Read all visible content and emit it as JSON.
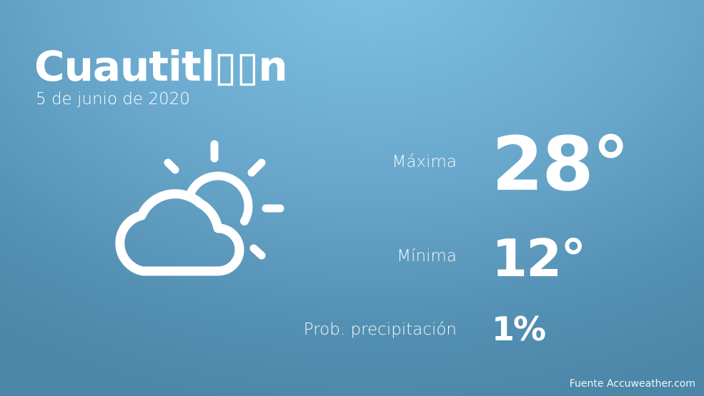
{
  "city": "Cuautitl▯▯n",
  "date": "5 de junio de 2020",
  "icon": "partly-cloudy-sun-icon",
  "rows": [
    {
      "label": "Máxima",
      "value": "28°"
    },
    {
      "label": "Mínima",
      "value": "12°"
    },
    {
      "label": "Prob. precipitación",
      "value": "1%"
    }
  ],
  "source": "Fuente Accuweather.com"
}
